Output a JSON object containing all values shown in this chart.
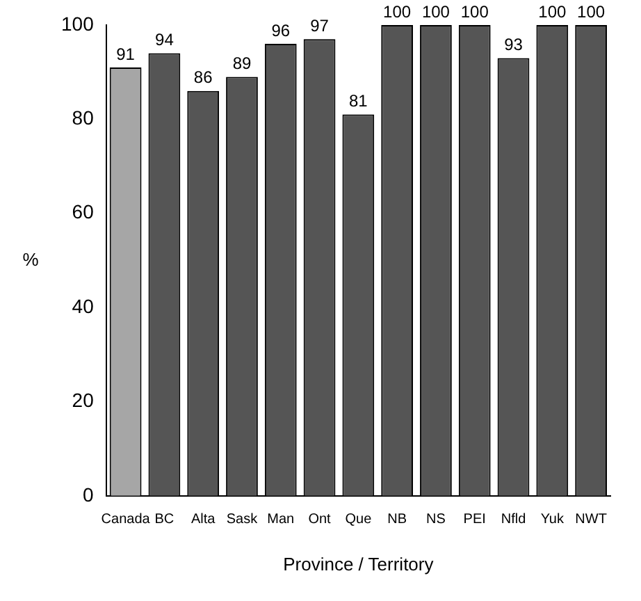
{
  "chart_data": {
    "type": "bar",
    "xlabel": "Province / Territory",
    "ylabel": "%",
    "categories": [
      "Canada",
      "BC",
      "Alta",
      "Sask",
      "Man",
      "Ont",
      "Que",
      "NB",
      "NS",
      "PEI",
      "Nfld",
      "Yuk",
      "NWT"
    ],
    "values": [
      91,
      94,
      86,
      89,
      96,
      97,
      81,
      100,
      100,
      100,
      93,
      100,
      100
    ],
    "colors": [
      "#a6a6a6",
      "#555555",
      "#555555",
      "#555555",
      "#555555",
      "#555555",
      "#555555",
      "#555555",
      "#555555",
      "#555555",
      "#555555",
      "#555555",
      "#555555"
    ],
    "ylim": [
      0,
      100
    ],
    "yticks": [
      0,
      20,
      40,
      60,
      80,
      100
    ],
    "grid": false,
    "data_labels": true
  }
}
